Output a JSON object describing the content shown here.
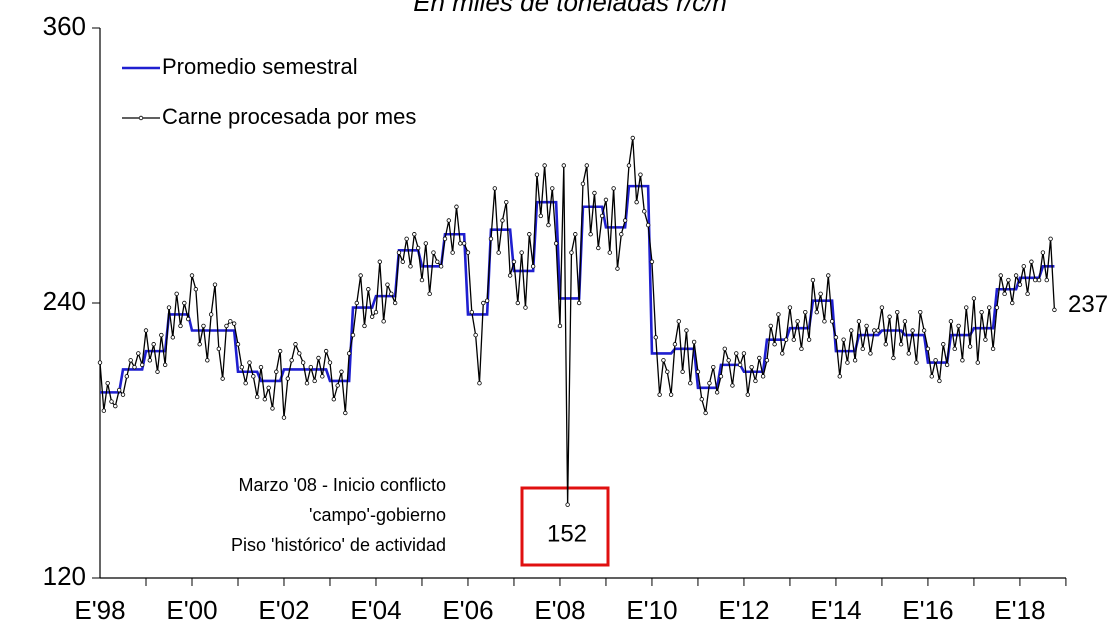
{
  "chart_data": {
    "type": "line",
    "title": "En miles de toneladas r/c/h",
    "categories": [
      "E'98",
      null,
      null,
      null,
      null,
      null,
      null,
      null,
      null,
      null,
      null,
      null,
      null,
      null,
      null,
      null,
      null,
      null,
      null,
      null,
      null,
      null,
      null,
      null,
      "E'00",
      null,
      null,
      null,
      null,
      null,
      null,
      null,
      null,
      null,
      null,
      null,
      null,
      null,
      null,
      null,
      null,
      null,
      null,
      null,
      null,
      null,
      null,
      null,
      "E'02",
      null,
      null,
      null,
      null,
      null,
      null,
      null,
      null,
      null,
      null,
      null,
      null,
      null,
      null,
      null,
      null,
      null,
      null,
      null,
      null,
      null,
      null,
      null,
      "E'04",
      null,
      null,
      null,
      null,
      null,
      null,
      null,
      null,
      null,
      null,
      null,
      null,
      null,
      null,
      null,
      null,
      null,
      null,
      null,
      null,
      null,
      null,
      null,
      "E'06",
      null,
      null,
      null,
      null,
      null,
      null,
      null,
      null,
      null,
      null,
      null,
      null,
      null,
      null,
      null,
      null,
      null,
      null,
      null,
      null,
      null,
      null,
      null,
      "E'08",
      null,
      null,
      null,
      null,
      null,
      null,
      null,
      null,
      null,
      null,
      null,
      null,
      null,
      null,
      null,
      null,
      null,
      null,
      null,
      null,
      null,
      null,
      null,
      "E'10",
      null,
      null,
      null,
      null,
      null,
      null,
      null,
      null,
      null,
      null,
      null,
      null,
      null,
      null,
      null,
      null,
      null,
      null,
      null,
      null,
      null,
      null,
      null,
      "E'12",
      null,
      null,
      null,
      null,
      null,
      null,
      null,
      null,
      null,
      null,
      null,
      null,
      null,
      null,
      null,
      null,
      null,
      null,
      null,
      null,
      null,
      null,
      null,
      "E'14",
      null,
      null,
      null,
      null,
      null,
      null,
      null,
      null,
      null,
      null,
      null,
      null,
      null,
      null,
      null,
      null,
      null,
      null,
      null,
      null,
      null,
      null,
      null,
      "E'16",
      null,
      null,
      null,
      null,
      null,
      null,
      null,
      null,
      null,
      null,
      null,
      null,
      null,
      null,
      null,
      null,
      null,
      null,
      null,
      null,
      null,
      null,
      null,
      "E'18",
      null,
      null,
      null,
      null,
      null,
      null,
      null,
      null,
      null
    ],
    "series": [
      {
        "name": "Promedio semestral",
        "color": "#1f1fd0",
        "values": [
          201,
          201,
          201,
          201,
          201,
          201,
          211,
          211,
          211,
          211,
          211,
          211,
          219,
          219,
          219,
          219,
          219,
          219,
          235,
          235,
          235,
          235,
          235,
          235,
          228,
          228,
          228,
          228,
          228,
          228,
          228,
          228,
          228,
          228,
          228,
          228,
          210,
          210,
          210,
          210,
          210,
          210,
          206,
          206,
          206,
          206,
          206,
          206,
          211,
          211,
          211,
          211,
          211,
          211,
          211,
          211,
          211,
          211,
          211,
          211,
          206,
          206,
          206,
          206,
          206,
          206,
          238,
          238,
          238,
          238,
          238,
          238,
          243,
          243,
          243,
          243,
          243,
          243,
          263,
          263,
          263,
          263,
          263,
          263,
          256,
          256,
          256,
          256,
          256,
          256,
          270,
          270,
          270,
          270,
          270,
          270,
          235,
          235,
          235,
          235,
          235,
          235,
          272,
          272,
          272,
          272,
          272,
          272,
          254,
          254,
          254,
          254,
          254,
          254,
          284,
          284,
          284,
          284,
          284,
          284,
          242,
          242,
          242,
          242,
          242,
          242,
          282,
          282,
          282,
          282,
          282,
          282,
          273,
          273,
          273,
          273,
          273,
          273,
          291,
          291,
          291,
          291,
          291,
          291,
          218,
          218,
          218,
          218,
          218,
          218,
          220,
          220,
          220,
          220,
          220,
          220,
          203,
          203,
          203,
          203,
          203,
          203,
          213,
          213,
          213,
          213,
          213,
          213,
          210,
          210,
          210,
          210,
          210,
          210,
          224,
          224,
          224,
          224,
          224,
          224,
          229,
          229,
          229,
          229,
          229,
          229,
          241,
          241,
          241,
          241,
          241,
          241,
          219,
          219,
          219,
          219,
          219,
          219,
          226,
          226,
          226,
          226,
          226,
          226,
          228,
          228,
          228,
          228,
          228,
          228,
          226,
          226,
          226,
          226,
          226,
          226,
          214,
          214,
          214,
          214,
          214,
          214,
          226,
          226,
          226,
          226,
          226,
          226,
          229,
          229,
          229,
          229,
          229,
          229,
          246,
          246,
          246,
          246,
          246,
          246,
          251,
          251,
          251,
          251,
          251,
          251,
          256,
          256,
          256,
          256
        ]
      },
      {
        "name": "Carne procesada por mes",
        "color": "#000000",
        "values": [
          214,
          193,
          205,
          197,
          195,
          202,
          200,
          208,
          215,
          212,
          218,
          213,
          228,
          215,
          222,
          210,
          226,
          213,
          238,
          225,
          244,
          230,
          240,
          233,
          252,
          246,
          222,
          230,
          215,
          235,
          248,
          220,
          207,
          230,
          232,
          231,
          222,
          212,
          205,
          214,
          208,
          199,
          212,
          198,
          203,
          194,
          210,
          219,
          190,
          207,
          215,
          222,
          218,
          214,
          205,
          212,
          206,
          216,
          208,
          219,
          214,
          198,
          204,
          210,
          192,
          218,
          226,
          240,
          252,
          230,
          246,
          234,
          236,
          258,
          232,
          248,
          244,
          240,
          262,
          258,
          268,
          256,
          270,
          264,
          250,
          266,
          244,
          262,
          258,
          256,
          268,
          276,
          262,
          282,
          266,
          266,
          262,
          236,
          226,
          205,
          240,
          241,
          268,
          290,
          262,
          276,
          284,
          252,
          258,
          240,
          262,
          238,
          270,
          256,
          296,
          278,
          300,
          274,
          290,
          266,
          230,
          300,
          152,
          262,
          270,
          240,
          292,
          300,
          270,
          288,
          264,
          278,
          285,
          262,
          290,
          255,
          270,
          276,
          300,
          312,
          284,
          296,
          280,
          274,
          258,
          225,
          200,
          215,
          210,
          200,
          222,
          232,
          210,
          228,
          205,
          223,
          210,
          198,
          192,
          205,
          212,
          201,
          208,
          220,
          215,
          204,
          218,
          213,
          218,
          200,
          212,
          206,
          216,
          208,
          215,
          230,
          222,
          235,
          218,
          224,
          238,
          224,
          232,
          220,
          236,
          224,
          250,
          236,
          244,
          232,
          252,
          232,
          225,
          208,
          224,
          214,
          228,
          215,
          232,
          220,
          230,
          218,
          228,
          228,
          238,
          222,
          234,
          216,
          236,
          222,
          232,
          218,
          228,
          214,
          236,
          228,
          220,
          208,
          215,
          206,
          222,
          213,
          232,
          220,
          230,
          215,
          238,
          221,
          242,
          214,
          236,
          224,
          238,
          220,
          238,
          252,
          244,
          250,
          240,
          252,
          248,
          256,
          244,
          258,
          250,
          250,
          262,
          250,
          268,
          237
        ]
      }
    ],
    "ylim": [
      120,
      360
    ],
    "yticks": [
      120,
      240,
      360
    ],
    "legend": "upper left",
    "annotations": [
      "Marzo '08 - Inicio conflicto",
      "'campo'-gobierno",
      "Piso 'histórico' de actividad"
    ]
  }
}
